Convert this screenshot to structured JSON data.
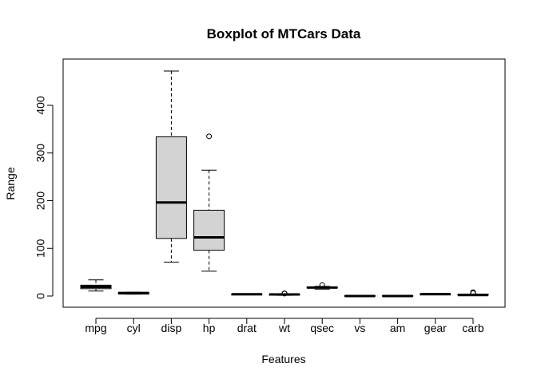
{
  "chart_data": {
    "type": "boxplot",
    "title": "Boxplot of MTCars Data",
    "xlabel": "Features",
    "ylabel": "Range",
    "ylim": [
      -20,
      490
    ],
    "yticks": [
      0,
      100,
      200,
      300,
      400
    ],
    "grid": false,
    "legend": "none",
    "box_fill": "#d3d3d3",
    "categories": [
      "mpg",
      "cyl",
      "disp",
      "hp",
      "drat",
      "wt",
      "qsec",
      "vs",
      "am",
      "gear",
      "carb"
    ],
    "boxes": [
      {
        "name": "mpg",
        "whisker_low": 10.4,
        "q1": 15.4,
        "median": 19.2,
        "q3": 22.8,
        "whisker_high": 33.9,
        "outliers": []
      },
      {
        "name": "cyl",
        "whisker_low": 4,
        "q1": 4,
        "median": 6,
        "q3": 8,
        "whisker_high": 8,
        "outliers": []
      },
      {
        "name": "disp",
        "whisker_low": 71.1,
        "q1": 120.8,
        "median": 196.3,
        "q3": 334,
        "whisker_high": 472,
        "outliers": []
      },
      {
        "name": "hp",
        "whisker_low": 52,
        "q1": 96,
        "median": 123,
        "q3": 180,
        "whisker_high": 264,
        "outliers": [
          335
        ]
      },
      {
        "name": "drat",
        "whisker_low": 2.76,
        "q1": 3.08,
        "median": 3.695,
        "q3": 3.92,
        "whisker_high": 4.93,
        "outliers": []
      },
      {
        "name": "wt",
        "whisker_low": 1.513,
        "q1": 2.58,
        "median": 3.325,
        "q3": 3.61,
        "whisker_high": 4.07,
        "outliers": [
          5.25,
          5.345,
          5.424
        ]
      },
      {
        "name": "qsec",
        "whisker_low": 14.5,
        "q1": 16.89,
        "median": 17.71,
        "q3": 18.9,
        "whisker_high": 20.22,
        "outliers": [
          22.9
        ]
      },
      {
        "name": "vs",
        "whisker_low": 0,
        "q1": 0,
        "median": 0,
        "q3": 1,
        "whisker_high": 1,
        "outliers": []
      },
      {
        "name": "am",
        "whisker_low": 0,
        "q1": 0,
        "median": 0,
        "q3": 1,
        "whisker_high": 1,
        "outliers": []
      },
      {
        "name": "gear",
        "whisker_low": 3,
        "q1": 3,
        "median": 4,
        "q3": 4,
        "whisker_high": 5,
        "outliers": []
      },
      {
        "name": "carb",
        "whisker_low": 1,
        "q1": 2,
        "median": 2,
        "q3": 4,
        "whisker_high": 4,
        "outliers": [
          6,
          8
        ]
      }
    ]
  }
}
